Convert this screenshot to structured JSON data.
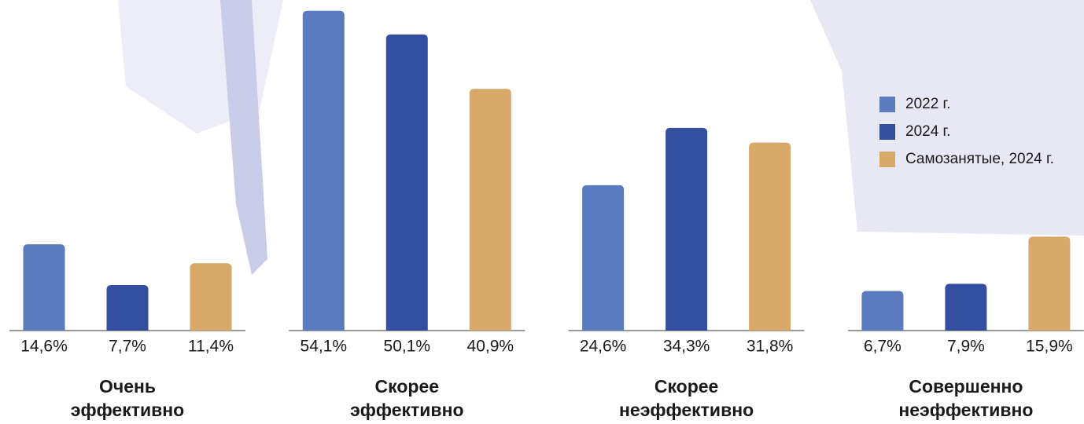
{
  "chart_data": {
    "type": "bar",
    "categories": [
      "Очень эффективно",
      "Скорее эффективно",
      "Скорее неэффективно",
      "Совершенно неэффективно"
    ],
    "series": [
      {
        "name": "2022 г.",
        "color": "#5a7bbf",
        "values": [
          14.6,
          54.1,
          24.6,
          6.7
        ],
        "value_labels": [
          "14,6%",
          "54,1%",
          "24,6%",
          "6,7%"
        ]
      },
      {
        "name": "2024 г.",
        "color": "#344ea0",
        "values": [
          7.7,
          50.1,
          34.3,
          7.9
        ],
        "value_labels": [
          "7,7%",
          "50,1%",
          "34,3%",
          "7,9%"
        ]
      },
      {
        "name": "Самозанятые, 2024 г.",
        "color": "#d9a96a",
        "values": [
          11.4,
          40.9,
          31.8,
          15.9
        ],
        "value_labels": [
          "11,4%",
          "40,9%",
          "31,8%",
          "15,9%"
        ]
      }
    ],
    "ylim": [
      0,
      55
    ],
    "legend": "top-right"
  }
}
